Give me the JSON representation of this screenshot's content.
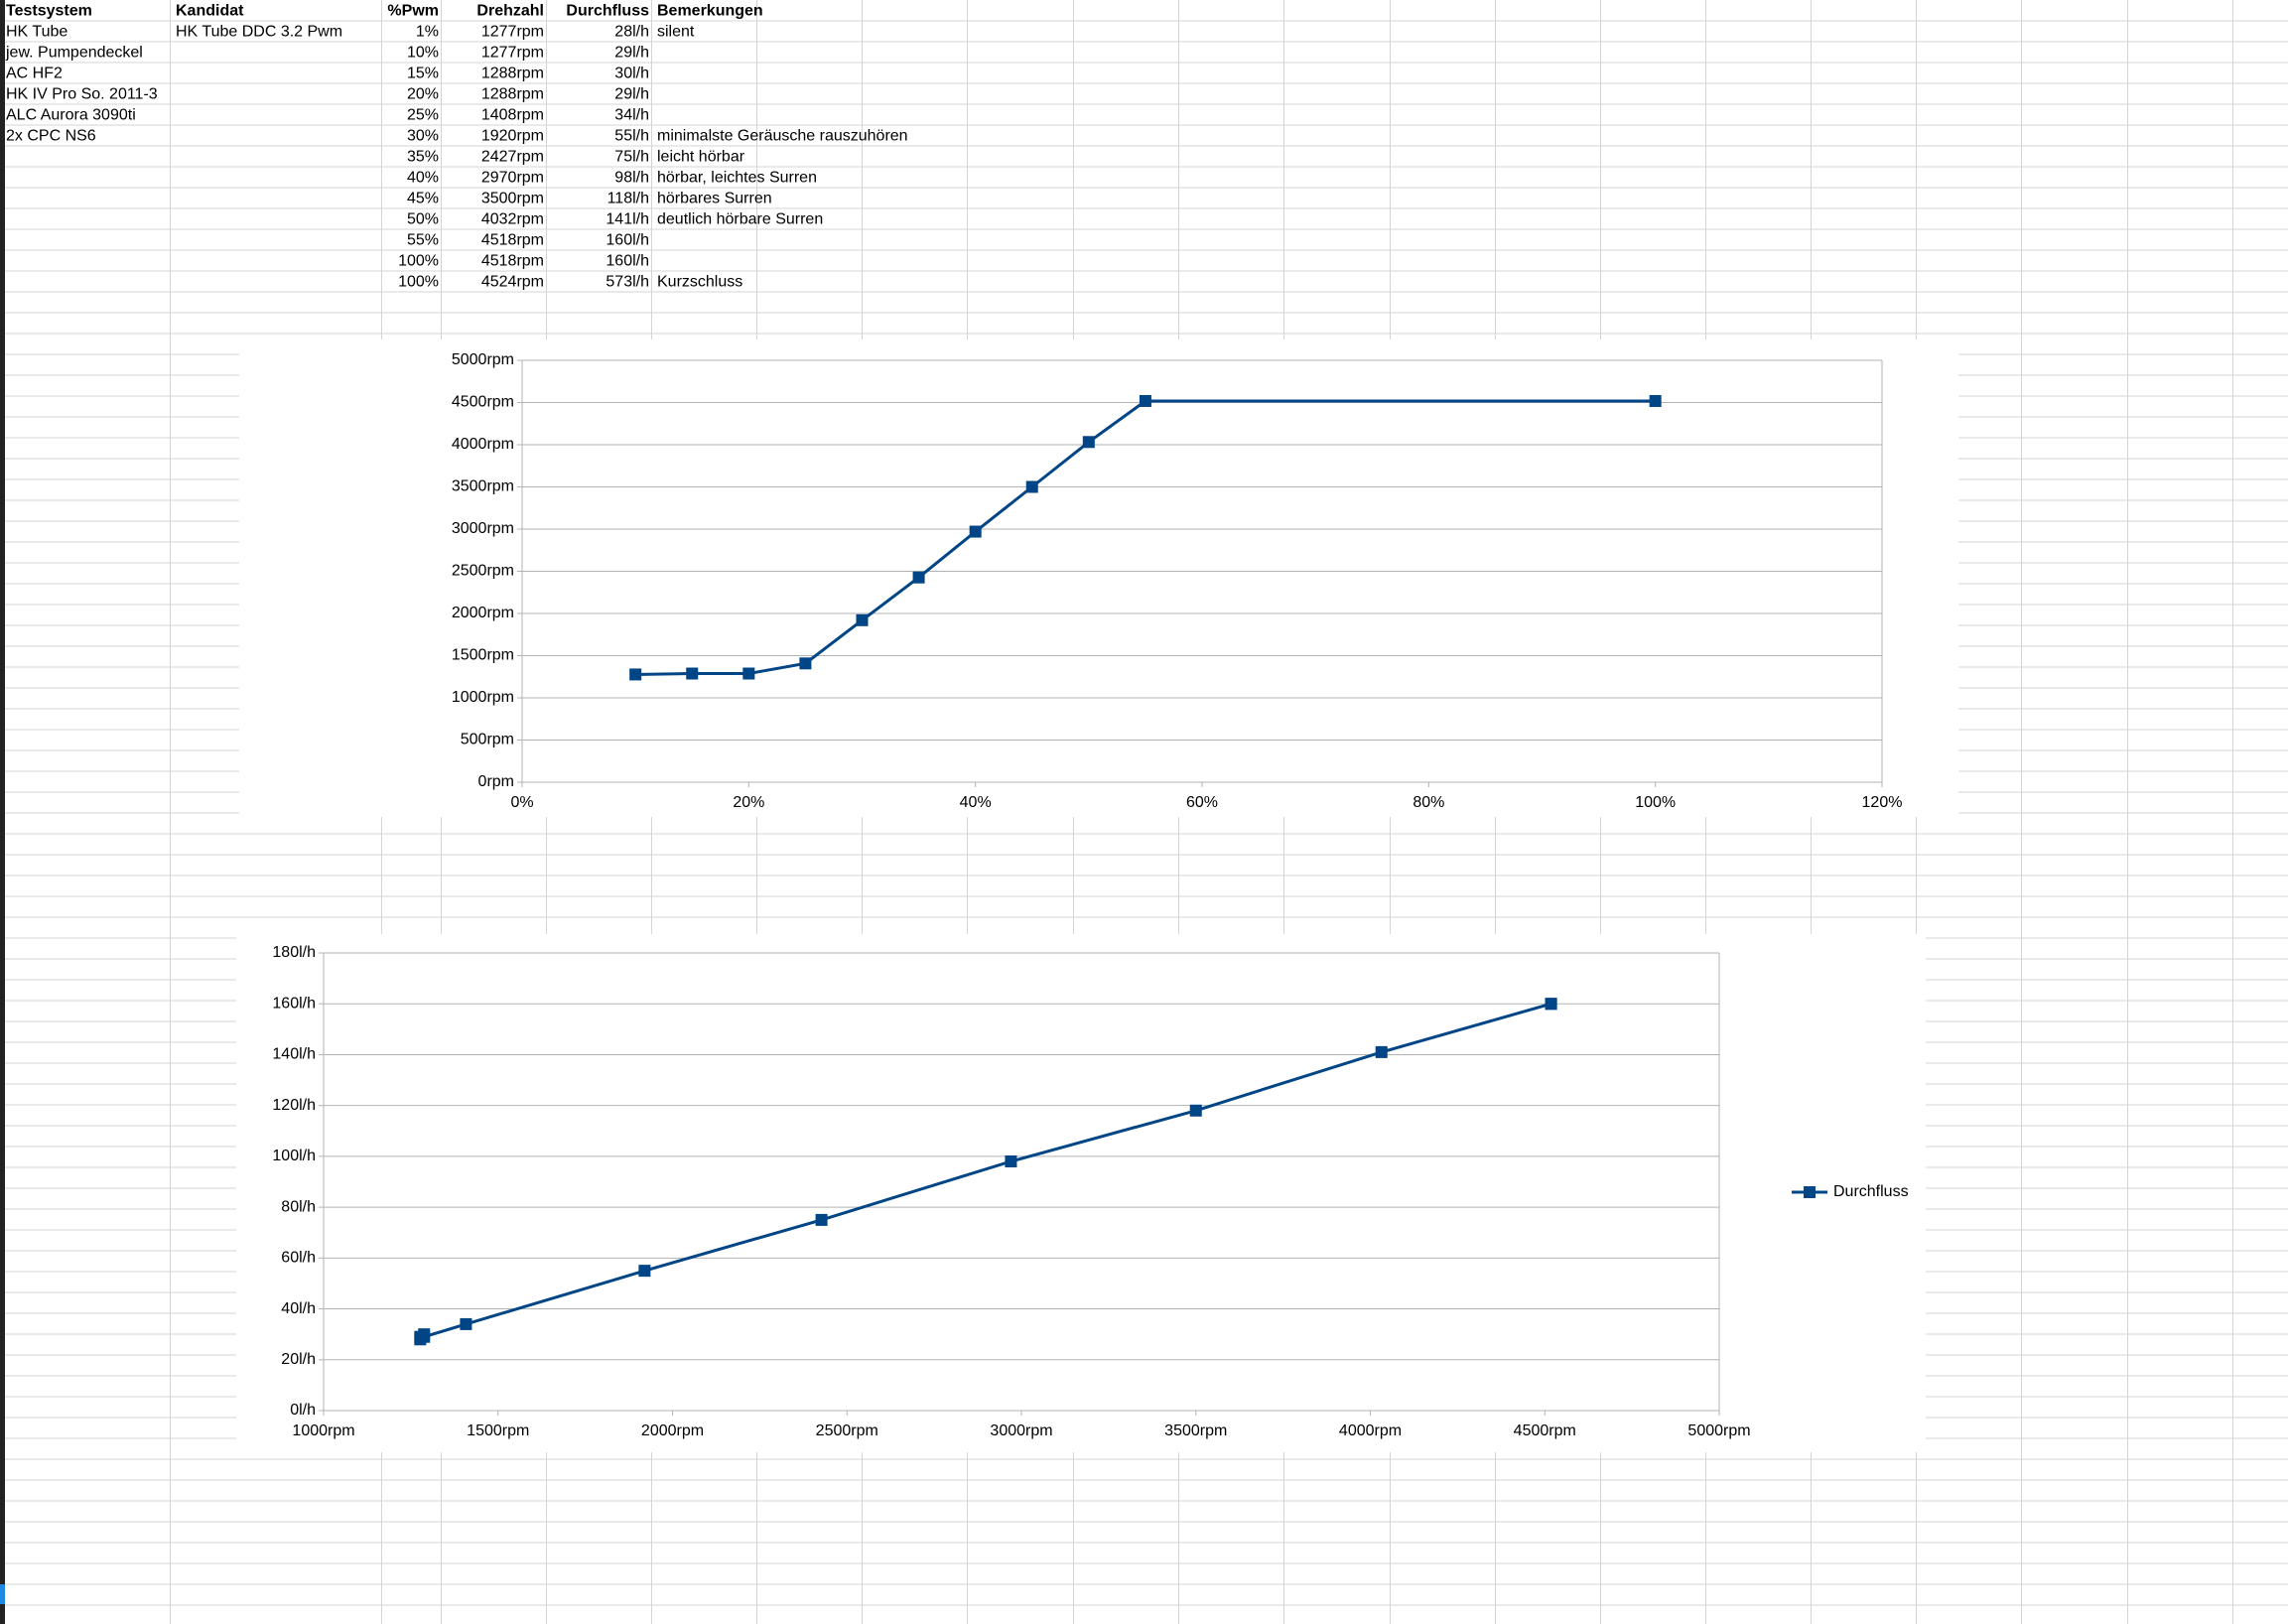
{
  "table": {
    "header": [
      "Testsystem",
      "Kandidat",
      "%Pwm",
      "Drehzahl",
      "Durchfluss",
      "Bemerkungen"
    ],
    "rows": [
      [
        "HK Tube",
        "HK Tube DDC 3.2 Pwm",
        "1%",
        "1277rpm",
        "28l/h",
        "silent"
      ],
      [
        "jew. Pumpendeckel",
        null,
        "10%",
        "1277rpm",
        "29l/h",
        null
      ],
      [
        "AC HF2",
        null,
        "15%",
        "1288rpm",
        "30l/h",
        null
      ],
      [
        "HK IV Pro So. 2011-3",
        null,
        "20%",
        "1288rpm",
        "29l/h",
        null
      ],
      [
        "ALC Aurora 3090ti",
        null,
        "25%",
        "1408rpm",
        "34l/h",
        null
      ],
      [
        "2x CPC NS6",
        null,
        "30%",
        "1920rpm",
        "55l/h",
        "minimalste Geräusche rauszuhören"
      ],
      [
        null,
        null,
        "35%",
        "2427rpm",
        "75l/h",
        "leicht hörbar"
      ],
      [
        null,
        null,
        "40%",
        "2970rpm",
        "98l/h",
        "hörbar, leichtes Surren"
      ],
      [
        null,
        null,
        "45%",
        "3500rpm",
        "118l/h",
        "hörbares Surren"
      ],
      [
        null,
        null,
        "50%",
        "4032rpm",
        "141l/h",
        "deutlich hörbare Surren"
      ],
      [
        null,
        null,
        "55%",
        "4518rpm",
        "160l/h",
        null
      ],
      [
        null,
        null,
        "100%",
        "4518rpm",
        "160l/h",
        null
      ],
      [
        null,
        null,
        "100%",
        "4524rpm",
        "573l/h",
        "Kurzschluss"
      ]
    ]
  },
  "chart_data": [
    {
      "type": "line",
      "series": [
        {
          "name": "Drehzahl",
          "color": "#004586",
          "x": [
            10,
            15,
            20,
            25,
            30,
            35,
            40,
            45,
            50,
            55,
            100
          ],
          "values": [
            1277,
            1288,
            1288,
            1408,
            1920,
            2427,
            2970,
            3500,
            4032,
            4518,
            4518
          ]
        }
      ],
      "xlim": [
        0,
        120
      ],
      "xticks": [
        {
          "value": 0,
          "label": "0%"
        },
        {
          "value": 20,
          "label": "20%"
        },
        {
          "value": 40,
          "label": "40%"
        },
        {
          "value": 60,
          "label": "60%"
        },
        {
          "value": 80,
          "label": "80%"
        },
        {
          "value": 100,
          "label": "100%"
        },
        {
          "value": 120,
          "label": "120%"
        }
      ],
      "ylim": [
        0,
        5000
      ],
      "yticks": [
        {
          "value": 0,
          "label": "0rpm"
        },
        {
          "value": 500,
          "label": "500rpm"
        },
        {
          "value": 1000,
          "label": "1000rpm"
        },
        {
          "value": 1500,
          "label": "1500rpm"
        },
        {
          "value": 2000,
          "label": "2000rpm"
        },
        {
          "value": 2500,
          "label": "2500rpm"
        },
        {
          "value": 3000,
          "label": "3000rpm"
        },
        {
          "value": 3500,
          "label": "3500rpm"
        },
        {
          "value": 4000,
          "label": "4000rpm"
        },
        {
          "value": 4500,
          "label": "4500rpm"
        },
        {
          "value": 5000,
          "label": "5000rpm"
        }
      ],
      "grid": true,
      "legend": false
    },
    {
      "type": "line",
      "series": [
        {
          "name": "Durchfluss",
          "color": "#004586",
          "x": [
            1277,
            1277,
            1288,
            1288,
            1408,
            1920,
            2427,
            2970,
            3500,
            4032,
            4518,
            4518
          ],
          "values": [
            28,
            29,
            30,
            29,
            34,
            55,
            75,
            98,
            118,
            141,
            160,
            160
          ]
        }
      ],
      "xlim": [
        1000,
        5000
      ],
      "xticks": [
        {
          "value": 1000,
          "label": "1000rpm"
        },
        {
          "value": 1500,
          "label": "1500rpm"
        },
        {
          "value": 2000,
          "label": "2000rpm"
        },
        {
          "value": 2500,
          "label": "2500rpm"
        },
        {
          "value": 3000,
          "label": "3000rpm"
        },
        {
          "value": 3500,
          "label": "3500rpm"
        },
        {
          "value": 4000,
          "label": "4000rpm"
        },
        {
          "value": 4500,
          "label": "4500rpm"
        },
        {
          "value": 5000,
          "label": "5000rpm"
        }
      ],
      "ylim": [
        0,
        180
      ],
      "yticks": [
        {
          "value": 0,
          "label": "0l/h"
        },
        {
          "value": 20,
          "label": "20l/h"
        },
        {
          "value": 40,
          "label": "40l/h"
        },
        {
          "value": 60,
          "label": "60l/h"
        },
        {
          "value": 80,
          "label": "80l/h"
        },
        {
          "value": 100,
          "label": "100l/h"
        },
        {
          "value": 120,
          "label": "120l/h"
        },
        {
          "value": 140,
          "label": "140l/h"
        },
        {
          "value": 160,
          "label": "160l/h"
        },
        {
          "value": 180,
          "label": "180l/h"
        }
      ],
      "grid": true,
      "legend": "right"
    }
  ]
}
